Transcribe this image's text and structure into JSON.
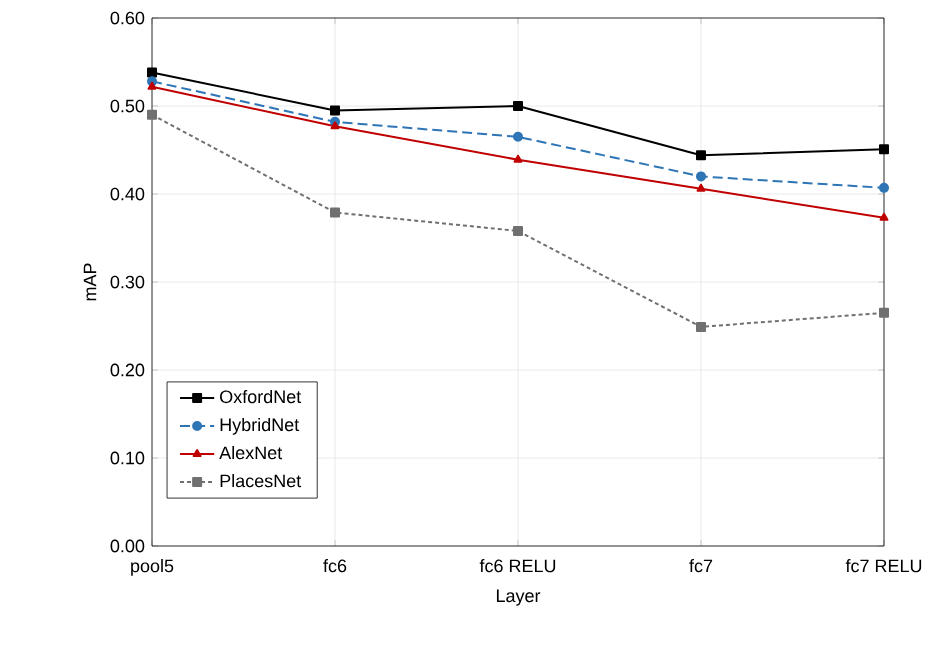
{
  "chart_data": {
    "type": "line",
    "xlabel": "Layer",
    "ylabel": "mAP",
    "categories": [
      "pool5",
      "fc6",
      "fc6 RELU",
      "fc7",
      "fc7 RELU"
    ],
    "series": [
      {
        "name": "OxfordNet",
        "color": "#000000",
        "marker": "square",
        "line_style": "solid",
        "values": [
          0.538,
          0.495,
          0.5,
          0.444,
          0.451
        ]
      },
      {
        "name": "HybridNet",
        "color": "#2e75b6",
        "marker": "circle",
        "line_style": "dashed",
        "values": [
          0.528,
          0.482,
          0.465,
          0.42,
          0.407
        ]
      },
      {
        "name": "AlexNet",
        "color": "#c00000",
        "marker": "triangle",
        "line_style": "solid",
        "values": [
          0.522,
          0.477,
          0.439,
          0.406,
          0.373
        ]
      },
      {
        "name": "PlacesNet",
        "color": "#707070",
        "marker": "square",
        "line_style": "dotted",
        "values": [
          0.49,
          0.379,
          0.358,
          0.249,
          0.265
        ]
      }
    ],
    "ylim": [
      0,
      0.6
    ],
    "yticks": [
      {
        "value": 0,
        "label": "0.00"
      },
      {
        "value": 0.1,
        "label": "0.10"
      },
      {
        "value": 0.2,
        "label": "0.20"
      },
      {
        "value": 0.3,
        "label": "0.30"
      },
      {
        "value": 0.4,
        "label": "0.40"
      },
      {
        "value": 0.5,
        "label": "0.50"
      },
      {
        "value": 0.6,
        "label": "0.60"
      }
    ],
    "grid": true,
    "legend": "bottom left"
  }
}
